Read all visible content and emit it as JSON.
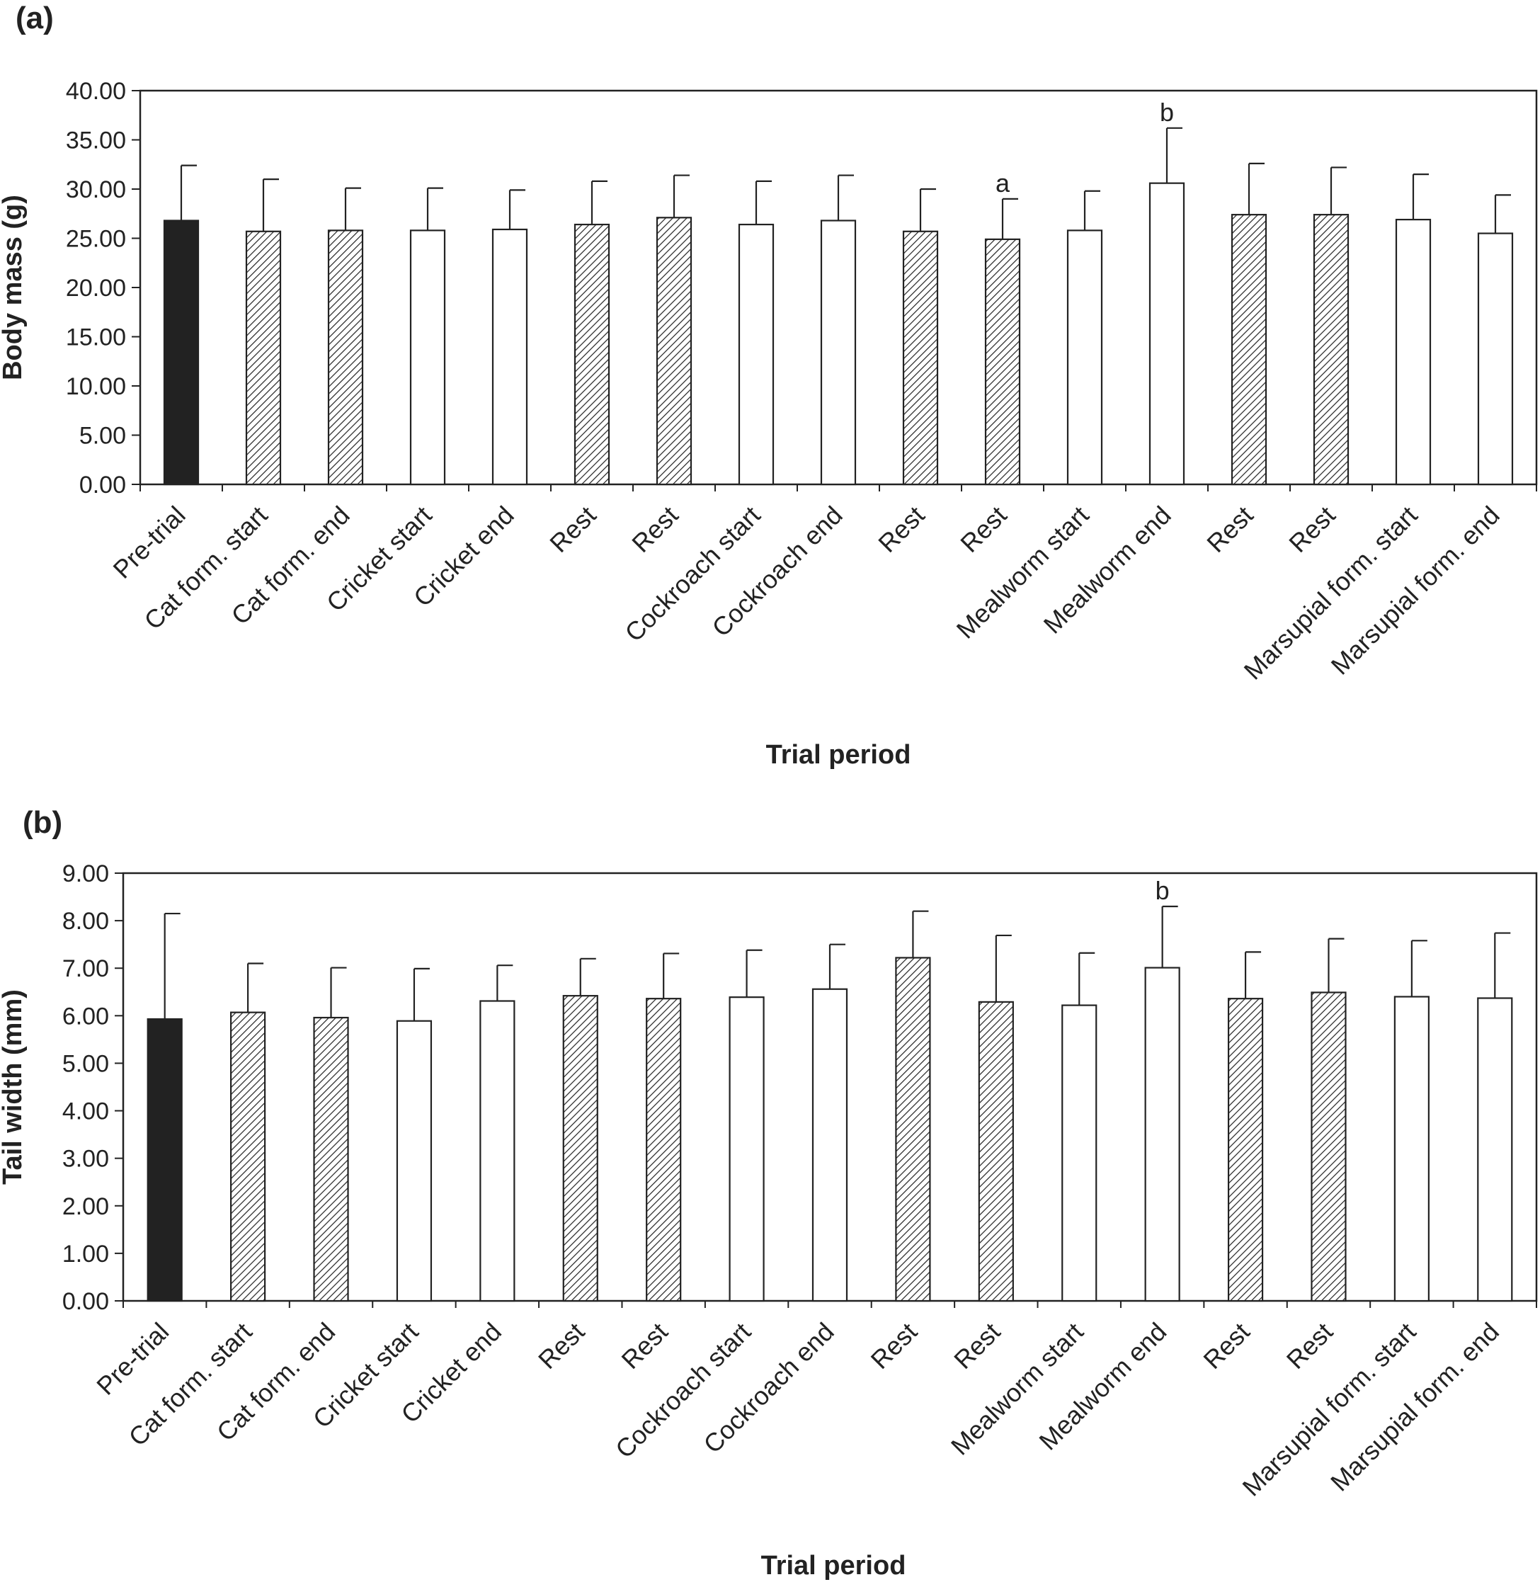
{
  "chart_data": [
    {
      "panel_label": "(a)",
      "type": "bar",
      "xlabel": "Trial period",
      "ylabel": "Body mass (g)",
      "ylim": [
        0,
        40
      ],
      "yticks": [
        "0.00",
        "5.00",
        "10.00",
        "15.00",
        "20.00",
        "25.00",
        "30.00",
        "35.00",
        "40.00"
      ],
      "grid": false,
      "categories": [
        "Pre-trial",
        "Cat form. start",
        "Cat form. end",
        "Cricket start",
        "Cricket end",
        "Rest",
        "Rest",
        "Cockroach start",
        "Cockroach end",
        "Rest",
        "Rest",
        "Mealworm start",
        "Mealworm end",
        "Rest",
        "Rest",
        "Marsupial form. start",
        "Marsupial form. end"
      ],
      "values": [
        26.8,
        25.7,
        25.8,
        25.8,
        25.9,
        26.4,
        27.1,
        26.4,
        26.8,
        25.7,
        24.9,
        25.8,
        30.6,
        27.4,
        27.4,
        26.9,
        25.5
      ],
      "error": [
        5.6,
        5.3,
        4.3,
        4.3,
        4.0,
        4.4,
        4.3,
        4.4,
        4.6,
        4.3,
        4.1,
        4.0,
        5.6,
        5.2,
        4.8,
        4.6,
        3.9
      ],
      "fills": [
        "solid",
        "hatch",
        "hatch",
        "white",
        "white",
        "hatch",
        "hatch",
        "white",
        "white",
        "hatch",
        "hatch",
        "white",
        "white",
        "hatch",
        "hatch",
        "white",
        "white"
      ],
      "annotations": [
        {
          "category_index": 10,
          "text": "a"
        },
        {
          "category_index": 12,
          "text": "b"
        }
      ]
    },
    {
      "panel_label": "(b)",
      "type": "bar",
      "xlabel": "Trial period",
      "ylabel": "Tail width (mm)",
      "ylim": [
        0,
        9
      ],
      "yticks": [
        "0.00",
        "1.00",
        "2.00",
        "3.00",
        "4.00",
        "5.00",
        "6.00",
        "7.00",
        "8.00",
        "9.00"
      ],
      "grid": false,
      "categories": [
        "Pre-trial",
        "Cat form. start",
        "Cat form. end",
        "Cricket start",
        "Cricket end",
        "Rest",
        "Rest",
        "Cockroach start",
        "Cockroach end",
        "Rest",
        "Rest",
        "Mealworm start",
        "Mealworm end",
        "Rest",
        "Rest",
        "Marsupial form. start",
        "Marsupial form. end"
      ],
      "values": [
        5.93,
        6.07,
        5.96,
        5.89,
        6.31,
        6.42,
        6.36,
        6.39,
        6.56,
        7.22,
        6.29,
        6.22,
        7.01,
        6.36,
        6.49,
        6.4,
        6.37
      ],
      "error": [
        2.22,
        1.03,
        1.05,
        1.1,
        0.75,
        0.78,
        0.95,
        0.99,
        0.94,
        0.98,
        1.4,
        1.1,
        1.29,
        0.98,
        1.13,
        1.18,
        1.37
      ],
      "fills": [
        "solid",
        "hatch",
        "hatch",
        "white",
        "white",
        "hatch",
        "hatch",
        "white",
        "white",
        "hatch",
        "hatch",
        "white",
        "white",
        "hatch",
        "hatch",
        "white",
        "white"
      ],
      "annotations": [
        {
          "category_index": 12,
          "text": "b"
        }
      ]
    }
  ]
}
